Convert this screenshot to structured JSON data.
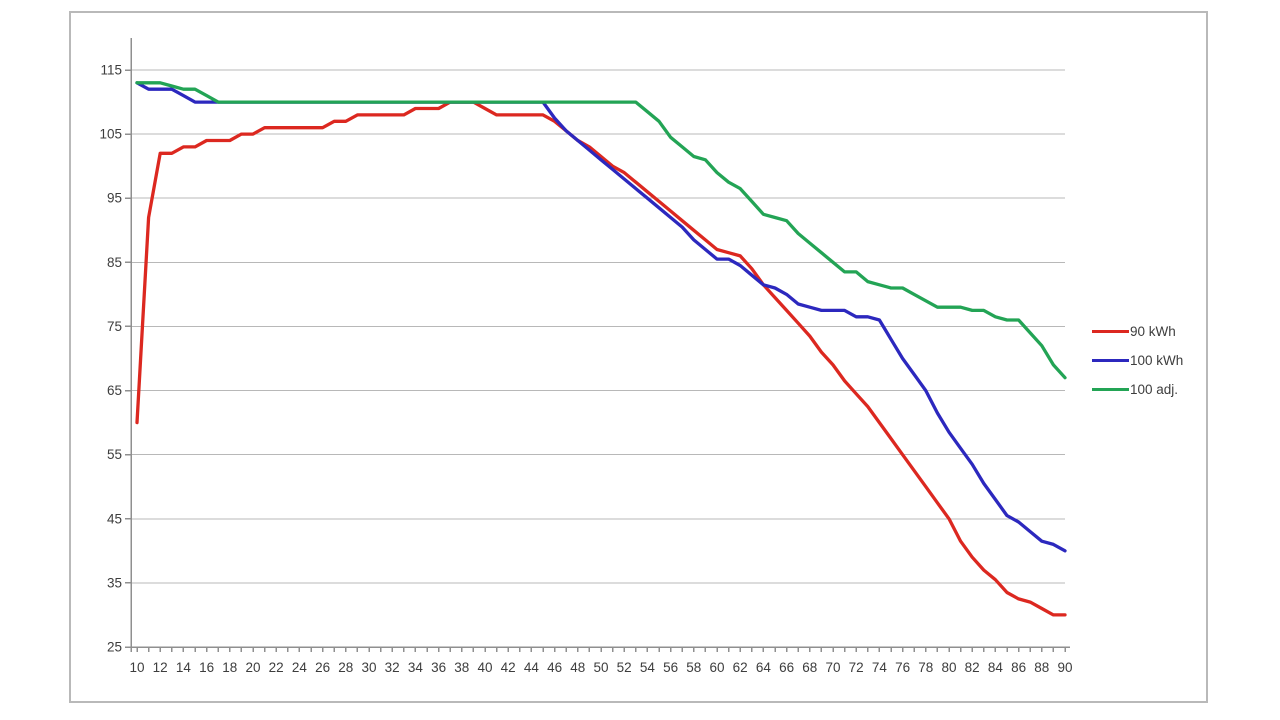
{
  "chart_data": {
    "type": "line",
    "title": "",
    "xlabel": "",
    "ylabel": "",
    "ylim": [
      25,
      115
    ],
    "xlim": [
      10,
      90
    ],
    "grid": "horizontal",
    "legend_position": "right",
    "y_ticks": [
      25,
      35,
      45,
      55,
      65,
      75,
      85,
      95,
      105,
      115
    ],
    "x_tick_labels": [
      10,
      12,
      14,
      16,
      18,
      20,
      22,
      24,
      26,
      28,
      30,
      32,
      34,
      36,
      38,
      40,
      42,
      44,
      46,
      48,
      50,
      52,
      54,
      56,
      58,
      60,
      62,
      64,
      66,
      68,
      70,
      72,
      74,
      76,
      78,
      80,
      82,
      84,
      86,
      88,
      90
    ],
    "x": [
      10,
      11,
      12,
      13,
      14,
      15,
      16,
      17,
      18,
      19,
      20,
      21,
      22,
      23,
      24,
      25,
      26,
      27,
      28,
      29,
      30,
      31,
      32,
      33,
      34,
      35,
      36,
      37,
      38,
      39,
      40,
      41,
      42,
      43,
      44,
      45,
      46,
      47,
      48,
      49,
      50,
      51,
      52,
      53,
      54,
      55,
      56,
      57,
      58,
      59,
      60,
      61,
      62,
      63,
      64,
      65,
      66,
      67,
      68,
      69,
      70,
      71,
      72,
      73,
      74,
      75,
      76,
      77,
      78,
      79,
      80,
      81,
      82,
      83,
      84,
      85,
      86,
      87,
      88,
      89,
      90
    ],
    "series": [
      {
        "name": "90 kWh",
        "color": "#dc2820",
        "values": [
          60,
          92,
          102,
          102,
          103,
          103,
          104,
          104,
          104,
          105,
          105,
          106,
          106,
          106,
          106,
          106,
          106,
          107,
          107,
          108,
          108,
          108,
          108,
          108,
          109,
          109,
          109,
          110,
          110,
          110,
          109,
          108,
          108,
          108,
          108,
          108,
          107,
          105.5,
          104,
          103,
          101.5,
          100,
          99,
          97.5,
          96,
          94.5,
          93,
          91.5,
          90,
          88.5,
          87,
          86.5,
          86,
          84,
          81.5,
          79.5,
          77.5,
          75.5,
          73.5,
          71,
          69,
          66.5,
          64.5,
          62.5,
          60,
          57.5,
          55,
          52.5,
          50,
          47.5,
          45,
          41.5,
          39,
          37,
          35.5,
          33.5,
          32.5,
          32,
          31,
          30,
          30
        ]
      },
      {
        "name": "100 kWh",
        "color": "#2c28be",
        "values": [
          113,
          112,
          112,
          112,
          111,
          110,
          110,
          110,
          110,
          110,
          110,
          110,
          110,
          110,
          110,
          110,
          110,
          110,
          110,
          110,
          110,
          110,
          110,
          110,
          110,
          110,
          110,
          110,
          110,
          110,
          110,
          110,
          110,
          110,
          110,
          110,
          107.5,
          105.5,
          104,
          102.5,
          101,
          99.5,
          98,
          96.5,
          95,
          93.5,
          92,
          90.5,
          88.5,
          87,
          85.5,
          85.5,
          84.5,
          83,
          81.5,
          81,
          80,
          78.5,
          78,
          77.5,
          77.5,
          77.5,
          76.5,
          76.5,
          76,
          73,
          70,
          67.5,
          65,
          61.5,
          58.5,
          56,
          53.5,
          50.5,
          48,
          45.5,
          44.5,
          43,
          41.5,
          41,
          40
        ]
      },
      {
        "name": "100 adj.",
        "color": "#23a455",
        "values": [
          113,
          113,
          113,
          112.5,
          112,
          112,
          111,
          110,
          110,
          110,
          110,
          110,
          110,
          110,
          110,
          110,
          110,
          110,
          110,
          110,
          110,
          110,
          110,
          110,
          110,
          110,
          110,
          110,
          110,
          110,
          110,
          110,
          110,
          110,
          110,
          110,
          110,
          110,
          110,
          110,
          110,
          110,
          110,
          110,
          108.5,
          107,
          104.5,
          103,
          101.5,
          101,
          99,
          97.5,
          96.5,
          94.5,
          92.5,
          92,
          91.5,
          89.5,
          88,
          86.5,
          85,
          83.5,
          83.5,
          82,
          81.5,
          81,
          81,
          80,
          79,
          78,
          78,
          78,
          77.5,
          77.5,
          76.5,
          76,
          76,
          74,
          72,
          69,
          67
        ]
      }
    ],
    "colors": {
      "gridline": "#b8b8b8",
      "axis": "#8f8f8f",
      "tick_text": "#3d3d3d",
      "frame_border": "#b9b9b9",
      "background": "#ffffff"
    }
  }
}
